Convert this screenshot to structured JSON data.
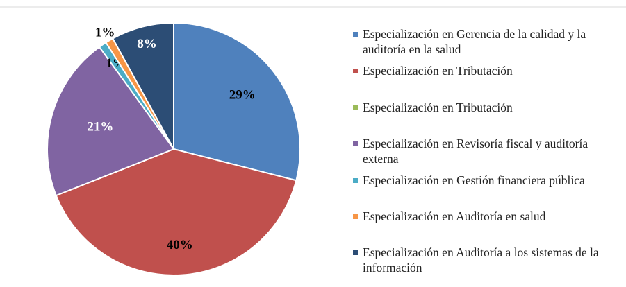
{
  "chart_data": {
    "type": "pie",
    "categories": [
      "Especialización en Gerencia de la calidad y la auditoría en la salud",
      "Especialización en Tributación",
      "Especialización en Tributación",
      "Especialización en Revisoría fiscal y auditoría externa",
      "Especialización en Gestión financiera pública",
      "Especialización en Auditoría en salud",
      "Especialización en Auditoría a los sistemas de la información"
    ],
    "values": [
      29,
      40,
      0,
      21,
      1,
      1,
      8
    ],
    "value_labels": [
      "29%",
      "40%",
      null,
      "21%",
      "1%",
      "1%",
      "8%"
    ],
    "colors": [
      "#4f81bd",
      "#c0504d",
      "#9bbb59",
      "#8064a2",
      "#4bacc6",
      "#f79646",
      "#2c4d75"
    ],
    "label_colors": [
      "#000000",
      "#000000",
      null,
      "#ffffff",
      "#000000",
      "#000000",
      "#ffffff"
    ],
    "legend": "right"
  }
}
